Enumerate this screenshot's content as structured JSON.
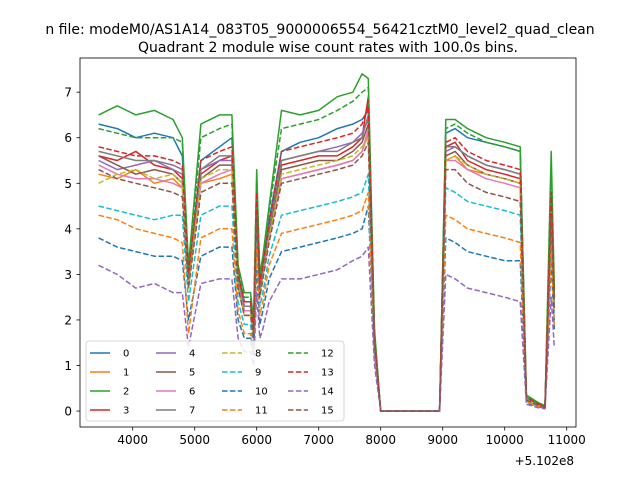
{
  "chart_data": {
    "type": "line",
    "suptitle": "n file: modeM0/AS1A14_083T05_9000006554_56421cztM0_level2_quad_clean",
    "title": "Quadrant 2 module wise count rates with 100.0s bins.",
    "xlabel": "",
    "ylabel": "",
    "x_offset_label": "+5.102e8",
    "xlim": [
      3150,
      11150
    ],
    "ylim": [
      -0.35,
      7.75
    ],
    "x_ticks": [
      4000,
      5000,
      6000,
      7000,
      8000,
      9000,
      10000,
      11000
    ],
    "x_tick_labels": [
      "4000",
      "5000",
      "6000",
      "7000",
      "8000",
      "9000",
      "10000",
      "11000"
    ],
    "y_ticks": [
      0,
      1,
      2,
      3,
      4,
      5,
      6,
      7
    ],
    "y_tick_labels": [
      "0",
      "1",
      "2",
      "3",
      "4",
      "5",
      "6",
      "7"
    ],
    "legend": {
      "location": "lower-left",
      "columns": 4
    },
    "x": [
      3450,
      3750,
      4050,
      4350,
      4650,
      4800,
      4900,
      5100,
      5400,
      5600,
      5700,
      5800,
      5900,
      5950,
      6000,
      6050,
      6100,
      6200,
      6400,
      6700,
      7000,
      7300,
      7550,
      7700,
      7800,
      7900,
      8000,
      8500,
      8950,
      9050,
      9200,
      9400,
      9700,
      10000,
      10250,
      10350,
      10550,
      10650,
      10750,
      10800
    ],
    "series": [
      {
        "name": "0",
        "color": "#1f77b4",
        "dash": "solid",
        "values": [
          6.3,
          6.2,
          6.0,
          6.1,
          6.0,
          5.6,
          3.0,
          5.5,
          5.8,
          6.0,
          3.0,
          2.4,
          2.4,
          1.8,
          4.9,
          2.8,
          3.2,
          4.2,
          5.7,
          5.9,
          6.0,
          6.2,
          6.3,
          6.4,
          6.6,
          1.6,
          0,
          0,
          0,
          6.1,
          6.2,
          6.0,
          5.9,
          5.8,
          5.7,
          0.3,
          0.15,
          0.1,
          4.7,
          2.5
        ]
      },
      {
        "name": "1",
        "color": "#ff7f0e",
        "dash": "solid",
        "values": [
          5.2,
          5.1,
          5.3,
          5.0,
          5.1,
          4.9,
          2.8,
          5.0,
          5.1,
          5.2,
          2.8,
          2.2,
          2.2,
          1.6,
          4.5,
          2.6,
          3.0,
          3.8,
          5.1,
          5.2,
          5.3,
          5.4,
          5.5,
          5.7,
          6.1,
          1.5,
          0,
          0,
          0,
          5.5,
          5.6,
          5.3,
          5.2,
          5.1,
          5.0,
          0.25,
          0.12,
          0.08,
          4.2,
          2.3
        ]
      },
      {
        "name": "2",
        "color": "#2ca02c",
        "dash": "solid",
        "values": [
          6.5,
          6.7,
          6.5,
          6.6,
          6.4,
          6.0,
          3.2,
          6.3,
          6.5,
          6.5,
          3.2,
          2.6,
          2.6,
          2.0,
          5.3,
          3.0,
          3.4,
          4.5,
          6.6,
          6.5,
          6.6,
          6.9,
          7.0,
          7.4,
          7.3,
          1.8,
          0,
          0,
          0,
          6.4,
          6.4,
          6.2,
          6.0,
          5.9,
          5.8,
          0.35,
          0.18,
          0.12,
          5.7,
          2.7
        ]
      },
      {
        "name": "3",
        "color": "#d62728",
        "dash": "solid",
        "values": [
          5.6,
          5.5,
          5.7,
          5.4,
          5.3,
          5.1,
          2.9,
          5.2,
          5.5,
          5.6,
          2.9,
          2.3,
          2.3,
          1.7,
          4.7,
          2.7,
          3.1,
          4.0,
          5.4,
          5.5,
          5.6,
          5.6,
          5.8,
          6.0,
          6.9,
          1.6,
          0,
          0,
          0,
          5.8,
          5.9,
          5.5,
          5.3,
          5.2,
          5.1,
          0.28,
          0.14,
          0.09,
          4.5,
          2.4
        ]
      },
      {
        "name": "4",
        "color": "#9467bd",
        "dash": "solid",
        "values": [
          5.5,
          5.3,
          5.4,
          5.5,
          5.3,
          5.2,
          2.9,
          5.3,
          5.5,
          5.5,
          2.9,
          2.3,
          2.3,
          1.7,
          4.7,
          2.7,
          3.1,
          4.0,
          5.5,
          5.6,
          5.7,
          5.8,
          5.9,
          6.1,
          6.4,
          1.6,
          0,
          0,
          0,
          5.7,
          5.8,
          5.6,
          5.4,
          5.3,
          5.2,
          0.28,
          0.14,
          0.09,
          4.6,
          2.4
        ]
      },
      {
        "name": "5",
        "color": "#8c564b",
        "dash": "solid",
        "values": [
          5.6,
          5.4,
          5.2,
          5.3,
          5.2,
          5.0,
          2.8,
          5.1,
          5.4,
          5.4,
          2.8,
          2.2,
          2.2,
          1.7,
          4.6,
          2.6,
          3.0,
          3.9,
          5.3,
          5.4,
          5.5,
          5.5,
          5.7,
          5.9,
          6.3,
          1.5,
          0,
          0,
          0,
          5.6,
          5.7,
          5.4,
          5.2,
          5.1,
          5.0,
          0.26,
          0.13,
          0.09,
          4.5,
          2.3
        ]
      },
      {
        "name": "6",
        "color": "#e377c2",
        "dash": "solid",
        "values": [
          5.4,
          5.2,
          5.1,
          5.1,
          5.0,
          4.9,
          2.8,
          5.0,
          5.2,
          5.3,
          2.8,
          2.2,
          2.2,
          1.6,
          4.5,
          2.6,
          3.0,
          3.8,
          5.1,
          5.2,
          5.3,
          5.4,
          5.5,
          5.7,
          6.2,
          1.5,
          0,
          0,
          0,
          5.5,
          5.5,
          5.3,
          5.1,
          5.0,
          4.9,
          0.25,
          0.12,
          0.08,
          4.4,
          2.3
        ]
      },
      {
        "name": "7",
        "color": "#7f7f7f",
        "dash": "solid",
        "values": [
          5.7,
          5.6,
          5.5,
          5.5,
          5.4,
          5.3,
          2.9,
          5.3,
          5.6,
          5.6,
          2.9,
          2.3,
          2.3,
          1.7,
          4.7,
          2.7,
          3.1,
          4.0,
          5.5,
          5.6,
          5.7,
          5.7,
          5.9,
          6.0,
          6.5,
          1.6,
          0,
          0,
          0,
          5.8,
          5.8,
          5.6,
          5.4,
          5.3,
          5.2,
          0.27,
          0.13,
          0.09,
          4.6,
          2.4
        ]
      },
      {
        "name": "8",
        "color": "#bcbd22",
        "dash": "dashed",
        "values": [
          5.0,
          5.2,
          5.3,
          5.1,
          5.2,
          5.0,
          2.7,
          5.1,
          5.3,
          5.3,
          2.7,
          2.1,
          2.1,
          1.6,
          4.4,
          2.5,
          2.9,
          3.8,
          5.2,
          5.3,
          5.4,
          5.5,
          5.6,
          5.8,
          6.0,
          1.5,
          0,
          0,
          0,
          5.5,
          5.6,
          5.4,
          5.2,
          5.1,
          5.0,
          0.25,
          0.12,
          0.08,
          4.4,
          2.3
        ]
      },
      {
        "name": "9",
        "color": "#17becf",
        "dash": "dashed",
        "values": [
          4.5,
          4.4,
          4.3,
          4.2,
          4.3,
          4.3,
          2.4,
          4.3,
          4.5,
          4.5,
          2.4,
          1.9,
          1.9,
          1.4,
          3.9,
          2.3,
          2.6,
          3.4,
          4.3,
          4.4,
          4.5,
          4.6,
          4.7,
          4.8,
          5.2,
          1.3,
          0,
          0,
          0,
          4.9,
          4.8,
          4.6,
          4.5,
          4.4,
          4.3,
          0.22,
          0.1,
          0.07,
          3.9,
          2.0
        ]
      },
      {
        "name": "10",
        "color": "#1f77b4",
        "dash": "dashed",
        "values": [
          3.8,
          3.6,
          3.5,
          3.4,
          3.4,
          3.3,
          2.0,
          3.4,
          3.6,
          3.6,
          2.0,
          1.6,
          1.6,
          1.2,
          3.2,
          1.9,
          2.2,
          2.9,
          3.5,
          3.6,
          3.7,
          3.8,
          3.9,
          4.0,
          4.5,
          1.2,
          0,
          0,
          0,
          3.8,
          3.7,
          3.5,
          3.4,
          3.3,
          3.3,
          0.18,
          0.09,
          0.06,
          3.3,
          1.8
        ]
      },
      {
        "name": "11",
        "color": "#ff7f0e",
        "dash": "dashed",
        "values": [
          4.3,
          4.2,
          4.0,
          3.9,
          3.8,
          3.7,
          1.7,
          3.8,
          4.0,
          4.0,
          2.2,
          1.7,
          1.7,
          1.3,
          3.6,
          2.1,
          2.4,
          3.2,
          3.9,
          4.0,
          4.1,
          4.2,
          4.3,
          4.4,
          4.8,
          1.2,
          0,
          0,
          0,
          4.3,
          4.2,
          4.0,
          3.9,
          3.8,
          3.7,
          0.2,
          0.1,
          0.07,
          3.6,
          1.9
        ]
      },
      {
        "name": "12",
        "color": "#2ca02c",
        "dash": "dashed",
        "values": [
          6.2,
          6.1,
          6.0,
          6.0,
          6.0,
          5.9,
          3.1,
          6.0,
          6.2,
          6.3,
          3.1,
          2.5,
          2.5,
          1.9,
          5.1,
          2.9,
          3.3,
          4.4,
          6.2,
          6.3,
          6.4,
          6.6,
          6.8,
          7.0,
          7.1,
          1.7,
          0,
          0,
          0,
          6.2,
          6.3,
          6.1,
          5.9,
          5.8,
          5.7,
          0.32,
          0.16,
          0.1,
          5.1,
          2.6
        ]
      },
      {
        "name": "13",
        "color": "#d62728",
        "dash": "dashed",
        "values": [
          5.8,
          5.7,
          5.6,
          5.6,
          5.5,
          5.4,
          3.0,
          5.5,
          5.7,
          5.8,
          3.0,
          2.4,
          2.4,
          1.8,
          4.8,
          2.8,
          3.2,
          4.1,
          5.7,
          5.8,
          5.9,
          6.0,
          6.1,
          6.3,
          6.7,
          1.6,
          0,
          0,
          0,
          5.9,
          6.0,
          5.7,
          5.5,
          5.4,
          5.3,
          0.3,
          0.15,
          0.1,
          4.8,
          2.5
        ]
      },
      {
        "name": "14",
        "color": "#9467bd",
        "dash": "dashed",
        "values": [
          3.2,
          3.0,
          2.7,
          2.8,
          2.6,
          2.6,
          1.4,
          2.8,
          2.9,
          2.9,
          1.6,
          1.3,
          1.3,
          1.0,
          2.6,
          1.6,
          1.8,
          2.4,
          2.9,
          2.9,
          3.0,
          3.1,
          3.3,
          3.4,
          3.6,
          1.0,
          0,
          0,
          0,
          3.0,
          2.9,
          2.7,
          2.6,
          2.5,
          2.4,
          0.15,
          0.07,
          0.05,
          2.5,
          1.4
        ]
      },
      {
        "name": "15",
        "color": "#8c564b",
        "dash": "dashed",
        "values": [
          5.3,
          5.1,
          5.0,
          4.9,
          4.8,
          4.7,
          2.7,
          4.8,
          5.0,
          5.0,
          2.7,
          2.1,
          2.1,
          1.6,
          4.3,
          2.5,
          2.9,
          3.7,
          5.0,
          5.1,
          5.2,
          5.3,
          5.4,
          5.6,
          5.9,
          1.5,
          0,
          0,
          0,
          5.3,
          5.3,
          5.0,
          4.8,
          4.7,
          4.6,
          0.24,
          0.12,
          0.08,
          4.3,
          2.2
        ]
      }
    ]
  }
}
